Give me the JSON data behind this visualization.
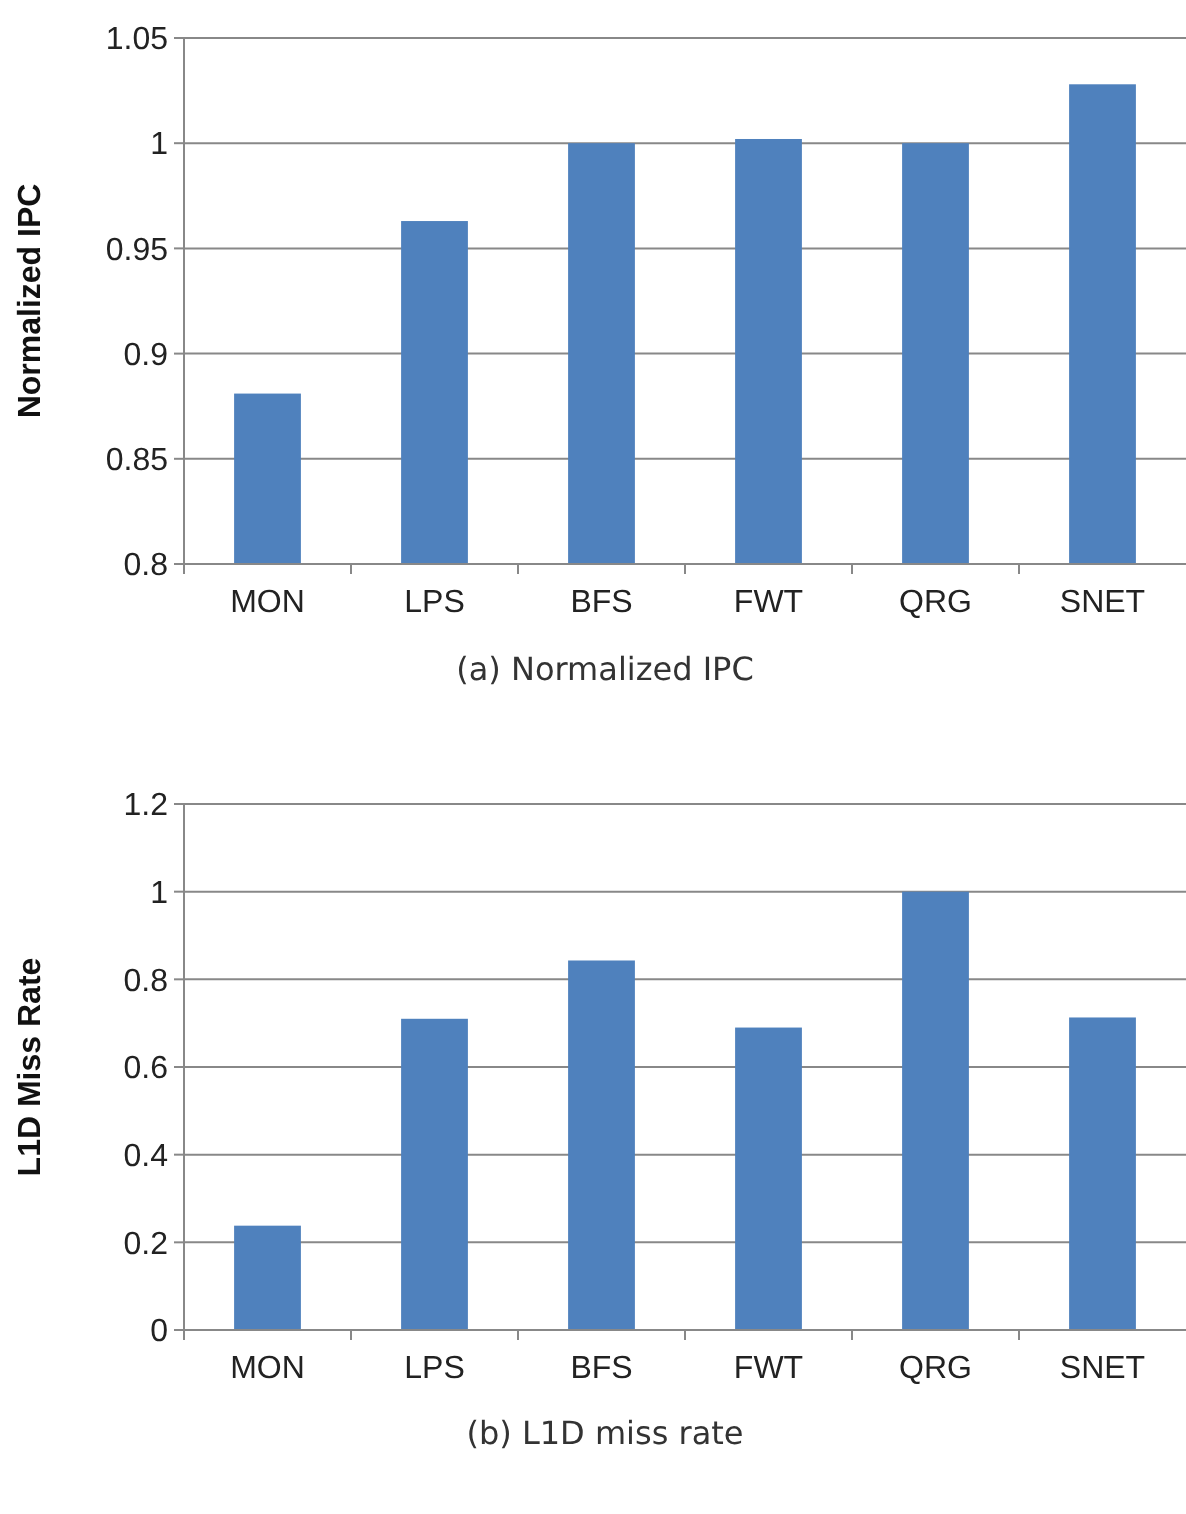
{
  "chart_data": [
    {
      "type": "bar",
      "title": "(a) Normalized IPC",
      "ylabel": "Normalized IPC",
      "categories": [
        "MON",
        "LPS",
        "BFS",
        "FWT",
        "QRG",
        "SNET"
      ],
      "values": [
        0.881,
        0.963,
        1.0,
        1.002,
        1.0,
        1.028
      ],
      "color": "#4f81bd",
      "ylim": [
        0.8,
        1.05
      ],
      "yticks": [
        {
          "value": 0.8,
          "label": "0.8"
        },
        {
          "value": 0.85,
          "label": "0.85"
        },
        {
          "value": 0.9,
          "label": "0.9"
        },
        {
          "value": 0.95,
          "label": "0.95"
        },
        {
          "value": 1,
          "label": "1"
        },
        {
          "value": 1.05,
          "label": "1.05"
        }
      ],
      "grid": "y"
    },
    {
      "type": "bar",
      "title": "(b) L1D miss rate",
      "ylabel": "L1D Miss Rate",
      "categories": [
        "MON",
        "LPS",
        "BFS",
        "FWT",
        "QRG",
        "SNET"
      ],
      "values": [
        0.238,
        0.71,
        0.843,
        0.69,
        1.0,
        0.713
      ],
      "color": "#4f81bd",
      "ylim": [
        0,
        1.2
      ],
      "yticks": [
        {
          "value": 0,
          "label": "0"
        },
        {
          "value": 0.2,
          "label": "0.2"
        },
        {
          "value": 0.4,
          "label": "0.4"
        },
        {
          "value": 0.6,
          "label": "0.6"
        },
        {
          "value": 0.8,
          "label": "0.8"
        },
        {
          "value": 1,
          "label": "1"
        },
        {
          "value": 1.2,
          "label": "1.2"
        }
      ],
      "grid": "y"
    }
  ]
}
